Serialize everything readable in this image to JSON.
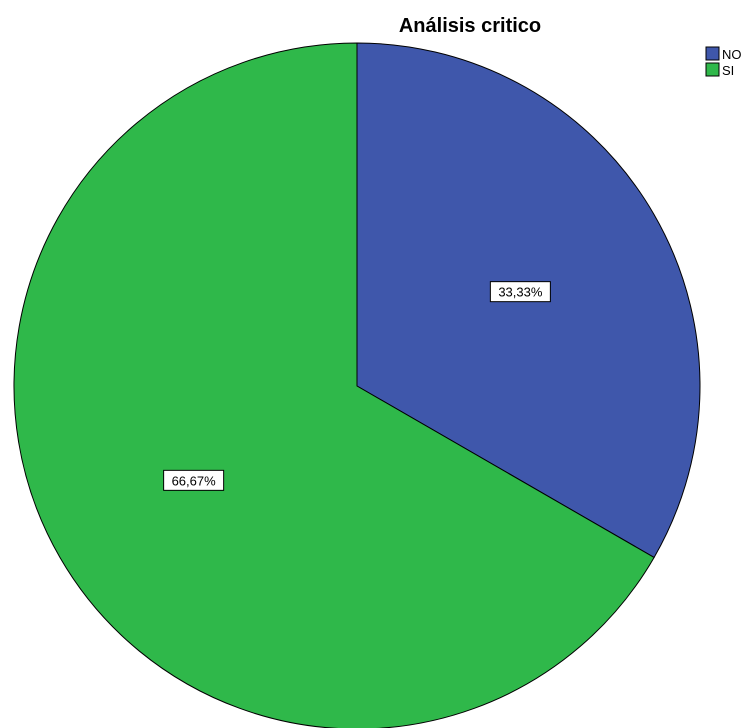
{
  "chart_data": {
    "type": "pie",
    "title": "Análisis critico",
    "legend_position": "top-right",
    "slices": [
      {
        "name": "NO",
        "value": 33.33,
        "label": "33,33%",
        "color": "#3f57ab"
      },
      {
        "name": "SI",
        "value": 66.67,
        "label": "66,67%",
        "color": "#2fb84a"
      }
    ],
    "legend": [
      {
        "name": "NO",
        "color": "#3f57ab"
      },
      {
        "name": "SI",
        "color": "#2fb84a"
      }
    ]
  }
}
